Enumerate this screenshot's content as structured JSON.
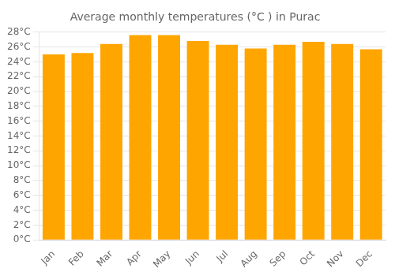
{
  "chart_data": {
    "type": "bar",
    "title": "Average monthly temperatures (°C ) in Purac",
    "categories": [
      "Jan",
      "Feb",
      "Mar",
      "Apr",
      "May",
      "Jun",
      "Jul",
      "Aug",
      "Sep",
      "Oct",
      "Nov",
      "Dec"
    ],
    "values": [
      25.0,
      25.2,
      26.4,
      27.6,
      27.6,
      26.8,
      26.3,
      25.8,
      26.3,
      26.7,
      26.4,
      25.7
    ],
    "color": "#FFA500",
    "ylim": [
      0,
      28
    ],
    "yticks": [
      {
        "value": 0,
        "label": "0°C"
      },
      {
        "value": 2,
        "label": "2°C"
      },
      {
        "value": 4,
        "label": "4°C"
      },
      {
        "value": 6,
        "label": "6°C"
      },
      {
        "value": 8,
        "label": "8°C"
      },
      {
        "value": 10,
        "label": "10°C"
      },
      {
        "value": 12,
        "label": "12°C"
      },
      {
        "value": 14,
        "label": "14°C"
      },
      {
        "value": 16,
        "label": "16°C"
      },
      {
        "value": 18,
        "label": "18°C"
      },
      {
        "value": 20,
        "label": "20°C"
      },
      {
        "value": 22,
        "label": "22°C"
      },
      {
        "value": 24,
        "label": "24°C"
      },
      {
        "value": 26,
        "label": "26°C"
      },
      {
        "value": 28,
        "label": "28°C"
      }
    ],
    "grid": true
  }
}
